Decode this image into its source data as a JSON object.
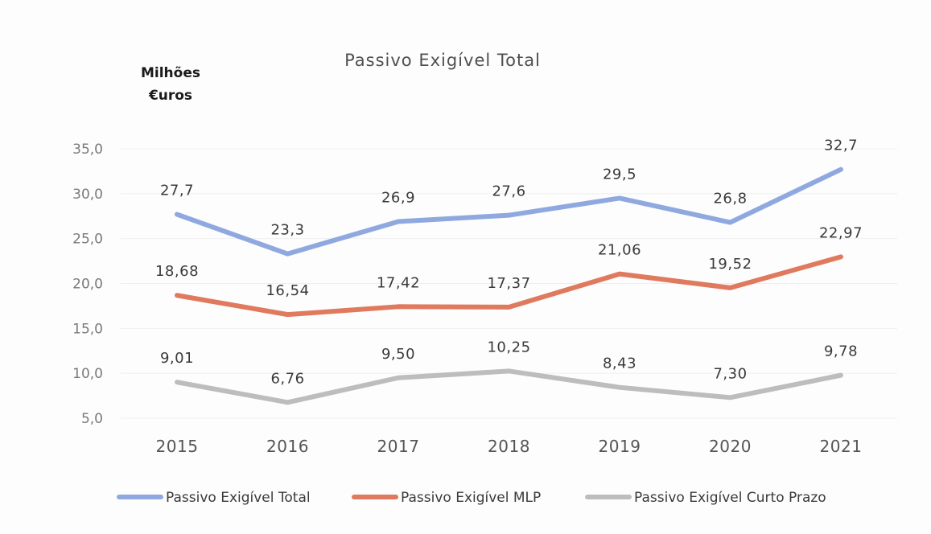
{
  "chart_data": {
    "type": "line",
    "title": "Passivo  Exigível  Total",
    "unit_label_lines": [
      "Milhões",
      "€uros"
    ],
    "x": [
      "2015",
      "2016",
      "2017",
      "2018",
      "2019",
      "2020",
      "2021"
    ],
    "ylim": [
      5.0,
      35.0
    ],
    "yticks": [
      "5,0",
      "10,0",
      "15,0",
      "20,0",
      "25,0",
      "30,0",
      "35,0"
    ],
    "ytick_values": [
      5,
      10,
      15,
      20,
      25,
      30,
      35
    ],
    "grid": true,
    "legend_position": "bottom",
    "series": [
      {
        "name": "Passivo Exigível Total",
        "color": "#8fa9e0",
        "values": [
          27.7,
          23.3,
          26.9,
          27.6,
          29.5,
          26.8,
          32.7
        ],
        "labels": [
          "27,7",
          "23,3",
          "26,9",
          "27,6",
          "29,5",
          "26,8",
          "32,7"
        ]
      },
      {
        "name": "Passivo Exigível MLP",
        "color": "#e07a5f",
        "values": [
          18.68,
          16.54,
          17.42,
          17.37,
          21.06,
          19.52,
          22.97
        ],
        "labels": [
          "18,68",
          "16,54",
          "17,42",
          "17,37",
          "21,06",
          "19,52",
          "22,97"
        ]
      },
      {
        "name": "Passivo Exigível Curto Prazo",
        "color": "#bdbdbd",
        "values": [
          9.01,
          6.76,
          9.5,
          10.25,
          8.43,
          7.3,
          9.78
        ],
        "labels": [
          "9,01",
          "6,76",
          "9,50",
          "10,25",
          "8,43",
          "7,30",
          "9,78"
        ]
      }
    ]
  }
}
